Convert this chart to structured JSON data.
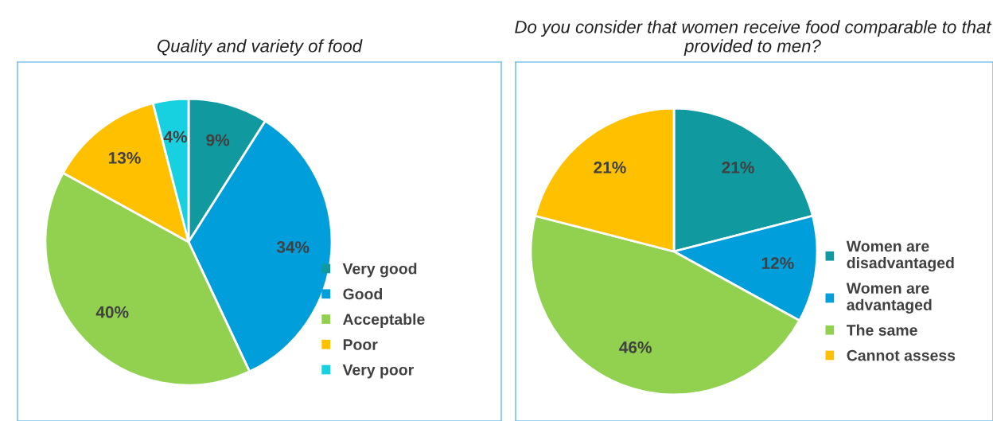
{
  "chart_data": [
    {
      "type": "pie",
      "title": "Quality and variety of food",
      "categories": [
        "Very good",
        "Good",
        "Acceptable",
        "Poor",
        "Very poor"
      ],
      "values": [
        9,
        34,
        40,
        13,
        4
      ],
      "value_labels": [
        "9%",
        "34%",
        "40%",
        "13%",
        "4%"
      ],
      "colors": [
        "#10999e",
        "#009fdb",
        "#92d050",
        "#ffc000",
        "#17d0e0"
      ],
      "legend": "right"
    },
    {
      "type": "pie",
      "title": "Do you consider that women receive food comparable to that provided to men?",
      "categories": [
        "Women are disadvantaged",
        "Women are advantaged",
        "The same",
        "Cannot assess"
      ],
      "values": [
        21,
        12,
        46,
        21
      ],
      "value_labels": [
        "21%",
        "12%",
        "46%",
        "21%"
      ],
      "colors": [
        "#10999e",
        "#009fdb",
        "#92d050",
        "#ffc000"
      ],
      "legend": "right"
    }
  ]
}
